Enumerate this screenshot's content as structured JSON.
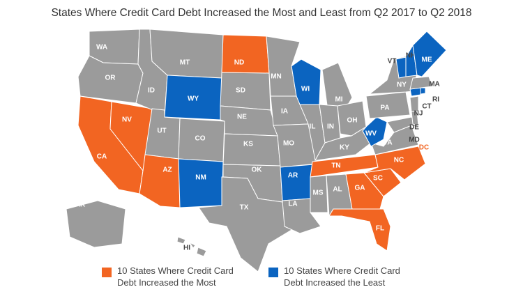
{
  "title": "States Where Credit Card Debt Increased the Most and Least from Q2 2017 to Q2 2018",
  "states": [
    {
      "label": "WA",
      "color": "#9b9b9b"
    },
    {
      "label": "OR",
      "color": "#9b9b9b"
    },
    {
      "label": "CA",
      "color": "#f26522"
    },
    {
      "label": "NV",
      "color": "#f26522"
    },
    {
      "label": "ID",
      "color": "#9b9b9b"
    },
    {
      "label": "MT",
      "color": "#9b9b9b"
    },
    {
      "label": "WY",
      "color": "#0b64c0"
    },
    {
      "label": "UT",
      "color": "#9b9b9b"
    },
    {
      "label": "CO",
      "color": "#9b9b9b"
    },
    {
      "label": "AZ",
      "color": "#f26522"
    },
    {
      "label": "NM",
      "color": "#0b64c0"
    },
    {
      "label": "ND",
      "color": "#f26522"
    },
    {
      "label": "SD",
      "color": "#9b9b9b"
    },
    {
      "label": "NE",
      "color": "#9b9b9b"
    },
    {
      "label": "KS",
      "color": "#9b9b9b"
    },
    {
      "label": "OK",
      "color": "#9b9b9b"
    },
    {
      "label": "TX",
      "color": "#9b9b9b"
    },
    {
      "label": "MN",
      "color": "#9b9b9b"
    },
    {
      "label": "IA",
      "color": "#9b9b9b"
    },
    {
      "label": "MO",
      "color": "#9b9b9b"
    },
    {
      "label": "AR",
      "color": "#0b64c0"
    },
    {
      "label": "LA",
      "color": "#9b9b9b"
    },
    {
      "label": "WI",
      "color": "#0b64c0"
    },
    {
      "label": "MI",
      "color": "#9b9b9b"
    },
    {
      "label": "IL",
      "color": "#9b9b9b"
    },
    {
      "label": "IN",
      "color": "#9b9b9b"
    },
    {
      "label": "OH",
      "color": "#9b9b9b"
    },
    {
      "label": "KY",
      "color": "#9b9b9b"
    },
    {
      "label": "TN",
      "color": "#f26522"
    },
    {
      "label": "MS",
      "color": "#9b9b9b"
    },
    {
      "label": "AL",
      "color": "#9b9b9b"
    },
    {
      "label": "GA",
      "color": "#f26522"
    },
    {
      "label": "FL",
      "color": "#f26522"
    },
    {
      "label": "SC",
      "color": "#f26522"
    },
    {
      "label": "NC",
      "color": "#f26522"
    },
    {
      "label": "VA",
      "color": "#9b9b9b"
    },
    {
      "label": "WV",
      "color": "#0b64c0"
    },
    {
      "label": "PA",
      "color": "#9b9b9b"
    },
    {
      "label": "NY",
      "color": "#9b9b9b"
    },
    {
      "label": "MD",
      "color": "#9b9b9b"
    },
    {
      "label": "DE",
      "color": "#9b9b9b"
    },
    {
      "label": "NJ",
      "color": "#9b9b9b"
    },
    {
      "label": "CT",
      "color": "#0b64c0"
    },
    {
      "label": "RI",
      "color": "#0b64c0"
    },
    {
      "label": "MA",
      "color": "#9b9b9b"
    },
    {
      "label": "VT",
      "color": "#0b64c0"
    },
    {
      "label": "NH",
      "color": "#0b64c0"
    },
    {
      "label": "ME",
      "color": "#0b64c0"
    },
    {
      "label": "AK",
      "color": "#9b9b9b"
    },
    {
      "label": "HI",
      "color": "#9b9b9b"
    },
    {
      "label": "DC",
      "color": "#f26522"
    }
  ],
  "legend": [
    {
      "label": "10 States Where Credit Card Debt Increased the Most",
      "color": "#f26522"
    },
    {
      "label": "10 States Where Credit Card Debt Increased the Least",
      "color": "#0b64c0"
    }
  ]
}
